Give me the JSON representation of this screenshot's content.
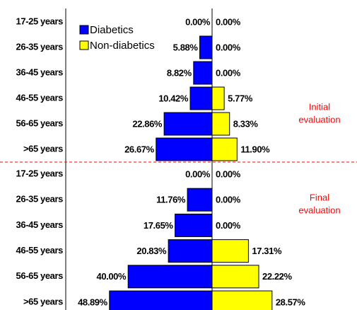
{
  "chart_data": {
    "type": "butterfly-bar",
    "categories": [
      "17-25 years",
      "26-35 years",
      "36-45 years",
      "46-55 years",
      "56-65 years",
      ">65 years",
      "17-25 years",
      "26-35 years",
      "36-45 years",
      "46-55 years",
      "56-65 years",
      ">65 years"
    ],
    "series": [
      {
        "name": "Diabetics",
        "color": "#0000ff",
        "side": "left",
        "values": [
          0,
          5.88,
          8.82,
          10.42,
          22.86,
          26.67,
          0,
          11.76,
          17.65,
          20.83,
          40,
          48.89
        ],
        "value_labels": [
          "0.00%",
          "5.88%",
          "8.82%",
          "10.42%",
          "22.86%",
          "26.67%",
          "0.00%",
          "11.76%",
          "17.65%",
          "20.83%",
          "40.00%",
          "48.89%"
        ]
      },
      {
        "name": "Non-diabetics",
        "color": "#ffff00",
        "side": "right",
        "values": [
          0,
          0,
          0,
          5.77,
          8.33,
          11.9,
          0,
          0,
          0,
          17.31,
          22.22,
          28.57
        ],
        "value_labels": [
          "0.00%",
          "0.00%",
          "0.00%",
          "5.77%",
          "8.33%",
          "11.90%",
          "0.00%",
          "0.00%",
          "0.00%",
          "17.31%",
          "22.22%",
          "28.57%"
        ]
      }
    ],
    "annotations": [
      [
        "Initial",
        "evaluation"
      ],
      [
        "Final",
        "evaluation"
      ]
    ],
    "annotation_color": "#ff0000"
  }
}
